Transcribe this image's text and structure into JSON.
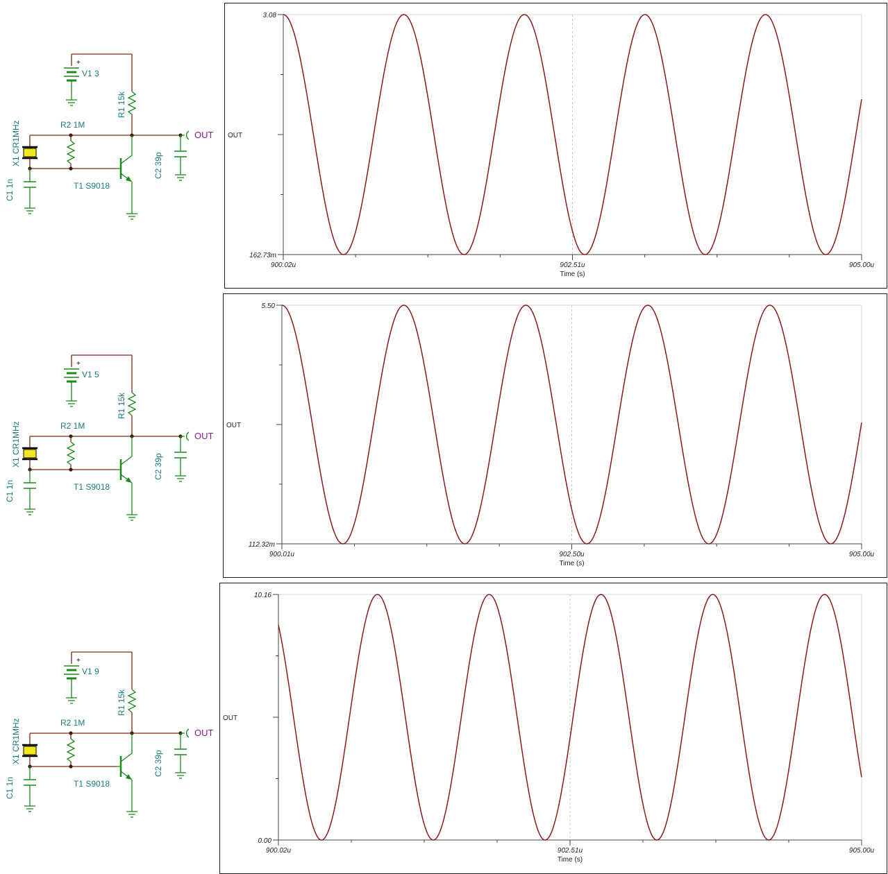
{
  "circuits": [
    {
      "supply_label": "V1 3",
      "plus": "+",
      "r1_label": "R1 15k",
      "r2_label": "R2 1M",
      "x1_label": "X1 CR1MHz",
      "c1_label": "C1 1n",
      "c2_label": "C2 39p",
      "t1_label": "T1 S9018",
      "out_label": "OUT"
    },
    {
      "supply_label": "V1 5",
      "plus": "+",
      "r1_label": "R1 15k",
      "r2_label": "R2 1M",
      "x1_label": "X1 CR1MHz",
      "c1_label": "C1 1n",
      "c2_label": "C2 39p",
      "t1_label": "T1 S9018",
      "out_label": "OUT"
    },
    {
      "supply_label": "V1 9",
      "plus": "+",
      "r1_label": "R1 15k",
      "r2_label": "R2 1M",
      "x1_label": "X1 CR1MHz",
      "c1_label": "C1 1n",
      "c2_label": "C2 39p",
      "t1_label": "T1 S9018",
      "out_label": "OUT"
    }
  ],
  "colors": {
    "wire": "#7a2a1a",
    "component": "#1a8a1a",
    "label": "#1a7a7a",
    "out_label": "#8a1a8a",
    "crystal_fill": "#f2e620",
    "trace": "#8b1a1a",
    "grid": "#d7d7d7"
  },
  "chart_data": [
    {
      "type": "line",
      "ylabel": "OUT",
      "xlabel": "Time (s)",
      "ymax_label": "3.08",
      "ymin_label": "162.73m",
      "xtick_labels": [
        "900.02u",
        "902.51u",
        "905.00u"
      ],
      "x_range_us": [
        900.02,
        905.0
      ],
      "y_range": [
        0.16273,
        3.08
      ],
      "signal": {
        "frequency_MHz": 1.0,
        "start": 3.08,
        "end": 2.05,
        "shape": "sine"
      },
      "grid": "center-dashed"
    },
    {
      "type": "line",
      "ylabel": "OUT",
      "xlabel": "Time (s)",
      "ymax_label": "5.50",
      "ymin_label": "112.32m",
      "xtick_labels": [
        "900.01u",
        "902.50u",
        "905.00u"
      ],
      "x_range_us": [
        900.01,
        905.0
      ],
      "y_range": [
        0.11232,
        5.5
      ],
      "signal": {
        "frequency_MHz": 1.0,
        "start": 5.5,
        "end": 2.85,
        "shape": "sine"
      },
      "grid": "center-dashed"
    },
    {
      "type": "line",
      "ylabel": "OUT",
      "xlabel": "Time (s)",
      "ymax_label": "10.16",
      "ymin_label": "0.00",
      "xtick_labels": [
        "900.02u",
        "902.51u",
        "905.00u"
      ],
      "x_range_us": [
        900.02,
        905.0
      ],
      "y_range": [
        0.0,
        10.16
      ],
      "signal": {
        "frequency_MHz": 1.0,
        "start": 8.9,
        "end": 2.6,
        "shape": "sine"
      },
      "grid": "center-dashed"
    }
  ]
}
